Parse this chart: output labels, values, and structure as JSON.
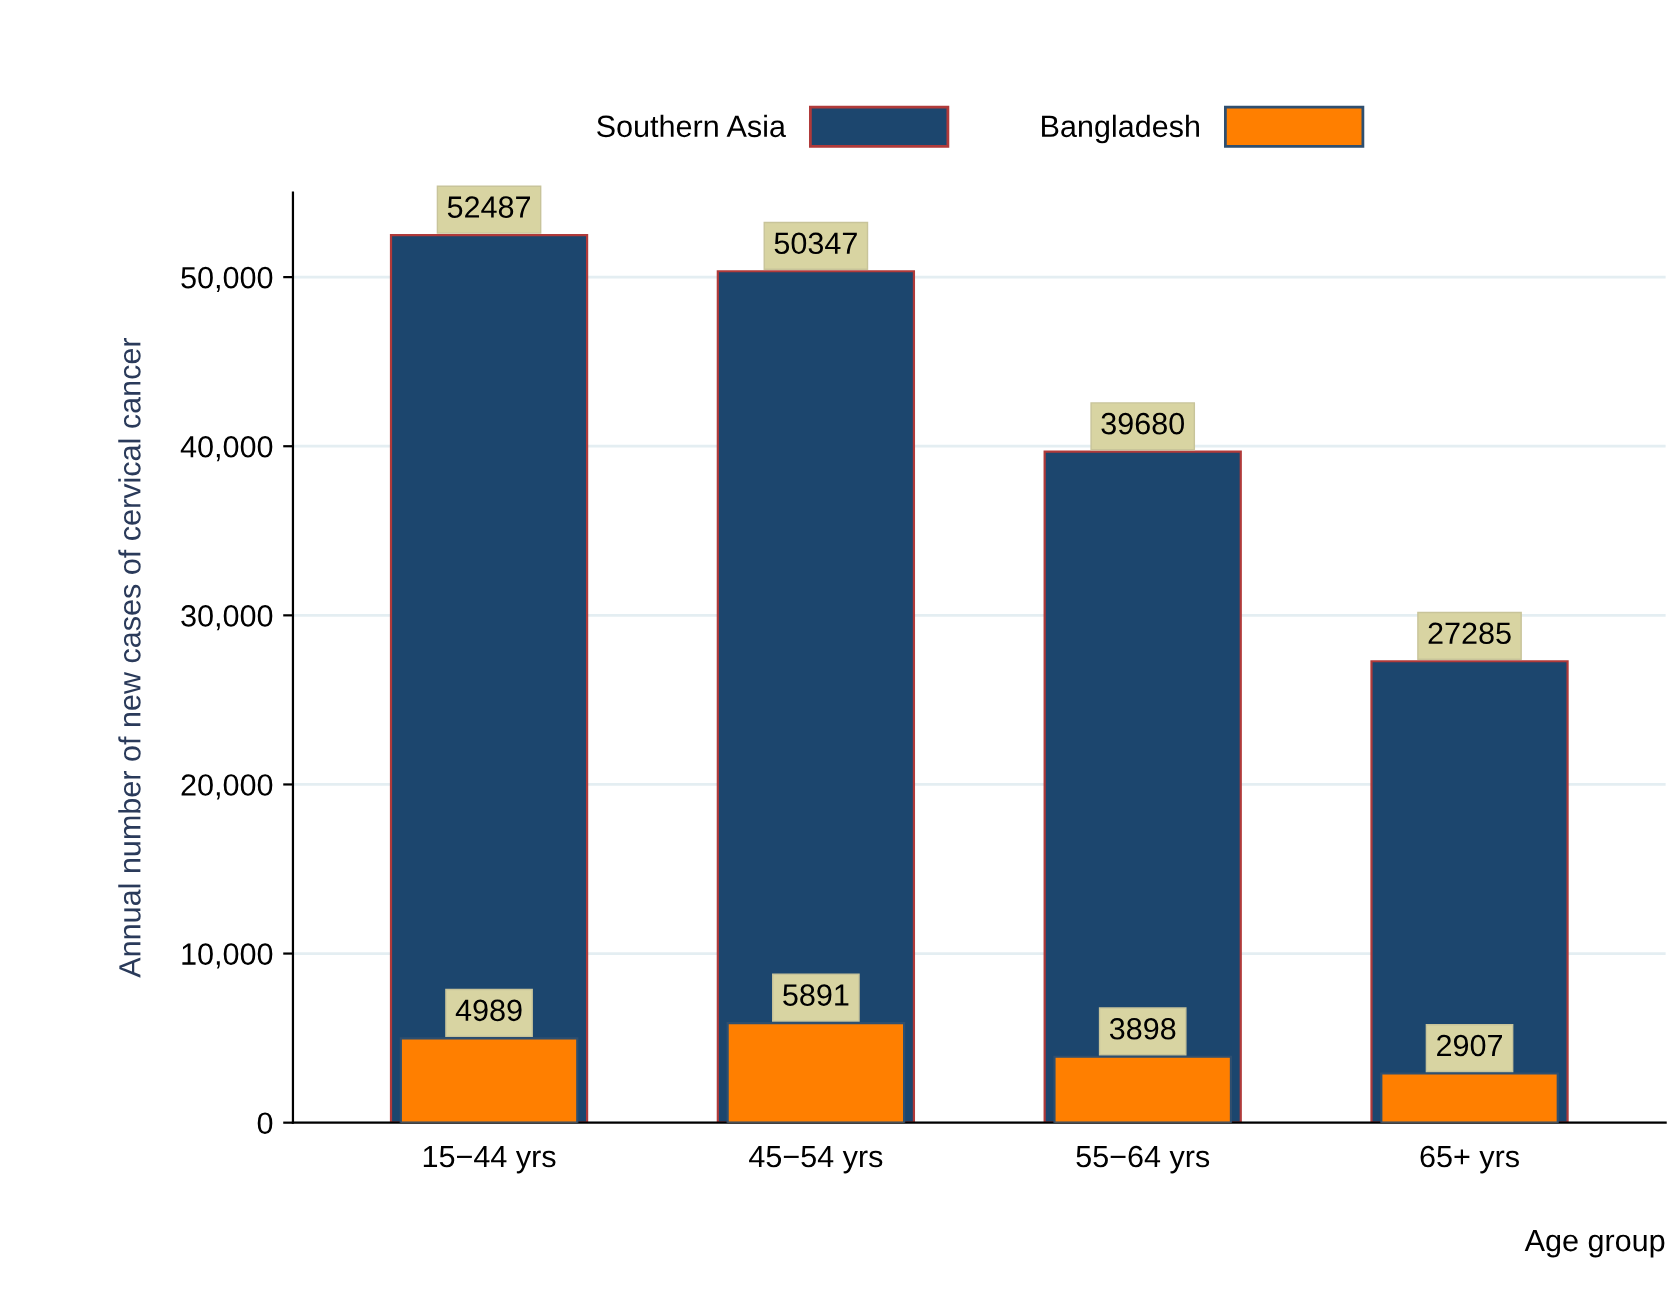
{
  "chart_data": {
    "type": "bar",
    "ylabel": "Annual number of new cases of cervical cancer",
    "xlabel": "Age group",
    "categories": [
      "15−44 yrs",
      "45−54 yrs",
      "55−64 yrs",
      "65+ yrs"
    ],
    "series": [
      {
        "name": "Southern Asia",
        "color": "#1c466e",
        "values": [
          52487,
          50347,
          39680,
          27285
        ]
      },
      {
        "name": "Bangladesh",
        "color": "#ff7f00",
        "values": [
          4989,
          5891,
          3898,
          2907
        ]
      }
    ],
    "ylim": [
      0,
      55000
    ],
    "yticks": [
      {
        "value": 0,
        "label": "0"
      },
      {
        "value": 10000,
        "label": "10,000"
      },
      {
        "value": 20000,
        "label": "20,000"
      },
      {
        "value": 30000,
        "label": "30,000"
      },
      {
        "value": 40000,
        "label": "40,000"
      },
      {
        "value": 50000,
        "label": "50,000"
      }
    ],
    "grid": "y",
    "legend": "top",
    "data_labels": true
  }
}
